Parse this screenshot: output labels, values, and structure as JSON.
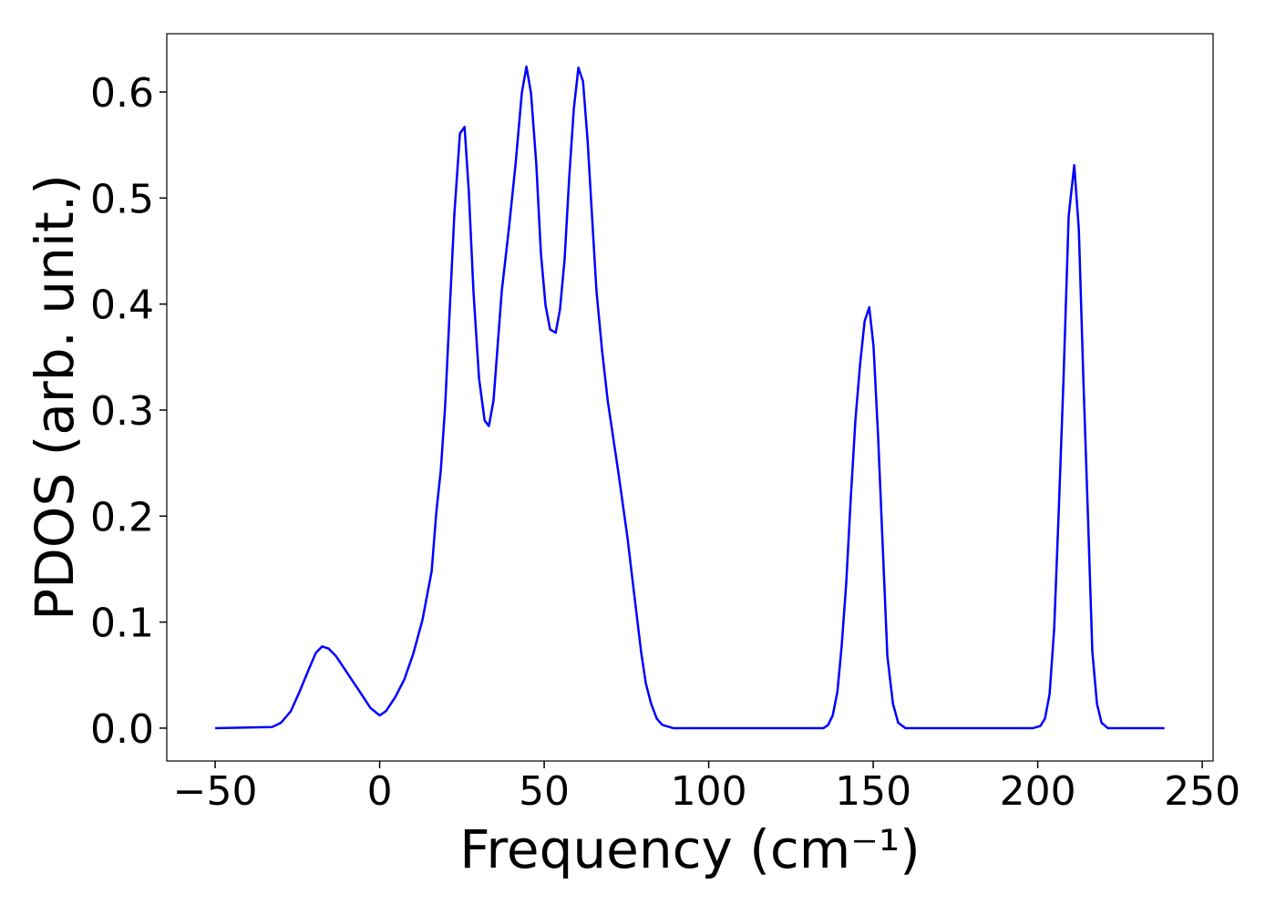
{
  "chart_data": {
    "type": "line",
    "xlabel": "Frequency (cm⁻¹)",
    "ylabel": "PDOS (arb. unit.)",
    "x": [
      -50,
      -32.7,
      -30,
      -27,
      -24.4,
      -21.6,
      -19.4,
      -17.5,
      -15.5,
      -13.3,
      -10.5,
      -6.4,
      -2.8,
      0,
      1.9,
      4.7,
      7.5,
      10.2,
      13,
      15.8,
      17.2,
      18.6,
      19.9,
      21.3,
      22.7,
      24.4,
      25.8,
      27.1,
      28.5,
      30.2,
      31.9,
      33.2,
      34.6,
      37.1,
      39.3,
      41.3,
      43.2,
      44.6,
      46,
      47.6,
      49,
      50.4,
      51.8,
      53.5,
      54.8,
      56.2,
      57.6,
      59,
      60.4,
      61.8,
      63.2,
      64.5,
      65.9,
      67.6,
      69.3,
      72.6,
      75.3,
      78.1,
      79.5,
      80.9,
      82.5,
      84.2,
      85.9,
      89.2,
      134.9,
      136.3,
      137.7,
      139.1,
      140.4,
      141.8,
      143.2,
      144.6,
      146,
      147.4,
      148.8,
      150.1,
      151.5,
      152.9,
      154.3,
      156,
      157.6,
      159.8,
      198.6,
      200.8,
      202.2,
      203.6,
      205,
      206.4,
      207.8,
      209.4,
      211.1,
      212.5,
      213.9,
      215.2,
      216.6,
      218,
      219.4,
      221.3,
      238.5
    ],
    "series": [
      {
        "color": "#0000ff",
        "values": [
          0,
          0.001,
          0.005,
          0.016,
          0.034,
          0.055,
          0.071,
          0.077,
          0.075,
          0.068,
          0.055,
          0.036,
          0.019,
          0.012,
          0.016,
          0.029,
          0.046,
          0.07,
          0.102,
          0.148,
          0.203,
          0.244,
          0.304,
          0.395,
          0.485,
          0.561,
          0.567,
          0.506,
          0.412,
          0.33,
          0.29,
          0.285,
          0.309,
          0.412,
          0.472,
          0.532,
          0.599,
          0.624,
          0.599,
          0.532,
          0.448,
          0.399,
          0.376,
          0.373,
          0.395,
          0.442,
          0.519,
          0.584,
          0.623,
          0.61,
          0.554,
          0.485,
          0.412,
          0.356,
          0.309,
          0.24,
          0.18,
          0.107,
          0.071,
          0.042,
          0.023,
          0.009,
          0.003,
          0,
          0,
          0.003,
          0.012,
          0.034,
          0.077,
          0.137,
          0.218,
          0.291,
          0.343,
          0.384,
          0.397,
          0.36,
          0.274,
          0.171,
          0.068,
          0.023,
          0.005,
          0,
          0,
          0.002,
          0.009,
          0.032,
          0.094,
          0.206,
          0.326,
          0.483,
          0.531,
          0.47,
          0.326,
          0.206,
          0.072,
          0.023,
          0.005,
          0,
          0
        ]
      }
    ],
    "xlim": [
      -64.7,
      253.3
    ],
    "ylim": [
      -0.031,
      0.655
    ],
    "xticks": [
      {
        "value": -50,
        "label": "−50"
      },
      0,
      50,
      100,
      150,
      200,
      250
    ],
    "yticks": [
      {
        "value": 0,
        "label": "0.0"
      },
      0.1,
      0.2,
      0.3,
      0.4,
      0.5,
      0.6
    ]
  }
}
